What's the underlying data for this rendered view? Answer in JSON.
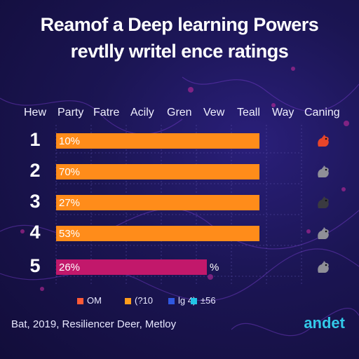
{
  "title_line1": "Reamof a Deep learning Powers",
  "title_line2": "revtlly writel ence ratings",
  "column_headers": [
    "Hew",
    "Party",
    "Fatre",
    "Acily",
    "Gren",
    "Vew",
    "Teall",
    "Way",
    "Caning"
  ],
  "footer": "Bat, 2019, Resiliencer Deer, Metloy",
  "brand": "andet",
  "colors": {
    "bar_orange": "#ff8c1a",
    "bar_magenta": "#c2186b",
    "icon_red": "#e8452a",
    "icon_gray": "#8f8f98",
    "icon_dark": "#3a3a40",
    "legend_orange_red": "#ff5a36",
    "legend_orange": "#ff9d1c",
    "legend_blue": "#2f58e0",
    "legend_cyan": "#22c4e6"
  },
  "chart_data": {
    "type": "bar",
    "orientation": "horizontal",
    "categories": [
      "1",
      "2",
      "3",
      "4",
      "5"
    ],
    "bar_labels": [
      "10%",
      "70%",
      "27%",
      "53%",
      "26%"
    ],
    "values": [
      100,
      100,
      100,
      100,
      74
    ],
    "bar_colors": [
      "#ff8c1a",
      "#ff8c1a",
      "#ff8c1a",
      "#ff8c1a",
      "#c2186b"
    ],
    "trailing_labels": [
      "",
      "",
      "",
      "",
      "%"
    ],
    "rank_icons": [
      "red-creature-icon",
      "gray-creature-icon",
      "dark-creature-icon",
      "gray-creature-icon",
      "gray-creature-icon"
    ],
    "legend": [
      {
        "label": "OM",
        "color": "#ff5a36"
      },
      {
        "label": "(?10",
        "color": "#ff9d1c"
      },
      {
        "label": "lg 4)",
        "color": "#2f58e0"
      },
      {
        "label": "±56",
        "color": "#22c4e6"
      }
    ],
    "grid": true,
    "legend_placement": "bottom"
  }
}
